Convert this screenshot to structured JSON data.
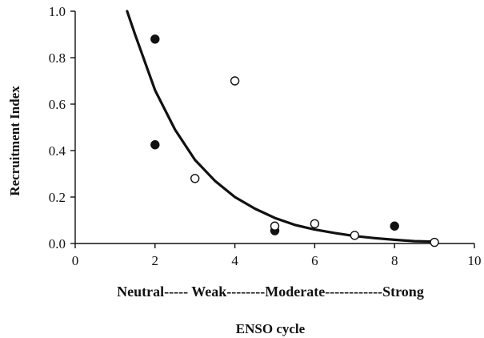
{
  "chart_data": {
    "type": "scatter",
    "title": "",
    "xlabel": "ENSO cycle",
    "ylabel": "Recruitment Index",
    "xlim": [
      0,
      10
    ],
    "ylim": [
      0,
      1.0
    ],
    "x_ticks": [
      "0",
      "2",
      "4",
      "6",
      "8",
      "10"
    ],
    "y_ticks": [
      "0.0",
      "0.2",
      "0.4",
      "0.6",
      "0.8",
      "1.0"
    ],
    "category_scale_label": "Neutral----- Weak--------Moderate------------Strong",
    "grid": false,
    "legend": "none",
    "series": [
      {
        "marker": "filled-circle",
        "points": [
          [
            2,
            0.88
          ],
          [
            2,
            0.425
          ],
          [
            5,
            0.055
          ],
          [
            8,
            0.075
          ]
        ]
      },
      {
        "marker": "open-circle",
        "points": [
          [
            3,
            0.28
          ],
          [
            4,
            0.7
          ],
          [
            5,
            0.075
          ],
          [
            6,
            0.085
          ],
          [
            7,
            0.035
          ],
          [
            9,
            0.005
          ]
        ]
      },
      {
        "type": "line",
        "style": "thick-black-curve",
        "points": [
          [
            1.3,
            1.0
          ],
          [
            1.5,
            0.9
          ],
          [
            2,
            0.66
          ],
          [
            2.5,
            0.49
          ],
          [
            3,
            0.36
          ],
          [
            3.5,
            0.27
          ],
          [
            4,
            0.2
          ],
          [
            4.5,
            0.15
          ],
          [
            5,
            0.11
          ],
          [
            5.5,
            0.08
          ],
          [
            6,
            0.06
          ],
          [
            6.5,
            0.045
          ],
          [
            7,
            0.032
          ],
          [
            7.5,
            0.023
          ],
          [
            8,
            0.016
          ],
          [
            8.5,
            0.01
          ],
          [
            9,
            0.008
          ]
        ]
      }
    ]
  }
}
